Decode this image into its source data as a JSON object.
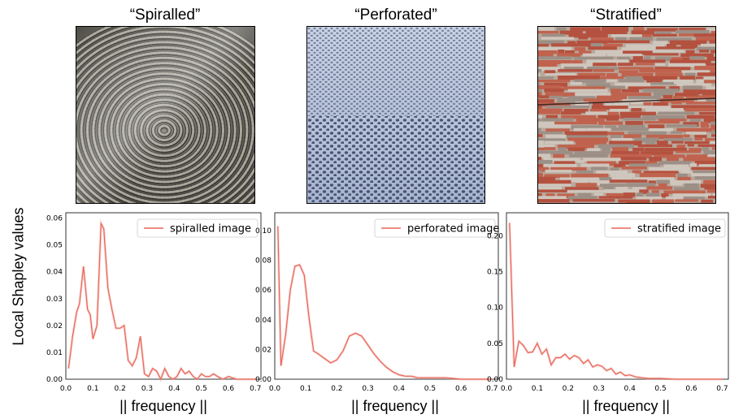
{
  "figure": {
    "ylabel": "Local Shapley values",
    "series_color": "#e8665a"
  },
  "panels": [
    {
      "title": "“Spiralled”",
      "texture": "rope-spiral",
      "xlabel": "|| frequency ||",
      "legend": "spiralled image"
    },
    {
      "title": "“Perforated”",
      "texture": "perforated-fabric",
      "xlabel": "|| frequency ||",
      "legend": "perforated image"
    },
    {
      "title": "“Stratified”",
      "texture": "stratified-wood",
      "xlabel": "|| frequency ||",
      "legend": "stratified image"
    }
  ],
  "chart_data": [
    {
      "type": "line",
      "legend_position": "top-right",
      "grid": false,
      "xlim": [
        0,
        0.72
      ],
      "ylim": [
        0,
        0.062
      ],
      "xticks": [
        "0.0",
        "0.1",
        "0.2",
        "0.3",
        "0.4",
        "0.5",
        "0.6",
        "0.7"
      ],
      "xtick_values": [
        0,
        0.1,
        0.2,
        0.3,
        0.4,
        0.5,
        0.6,
        0.7
      ],
      "yticks": [
        "0.00",
        "0.01",
        "0.02",
        "0.03",
        "0.04",
        "0.05",
        "0.06"
      ],
      "ytick_values": [
        0,
        0.01,
        0.02,
        0.03,
        0.04,
        0.05,
        0.06
      ],
      "series": [
        {
          "name": "spiralled image",
          "x": [
            0.01,
            0.025,
            0.04,
            0.05,
            0.065,
            0.08,
            0.09,
            0.1,
            0.115,
            0.13,
            0.14,
            0.155,
            0.17,
            0.185,
            0.2,
            0.215,
            0.23,
            0.245,
            0.26,
            0.275,
            0.29,
            0.305,
            0.32,
            0.335,
            0.35,
            0.365,
            0.38,
            0.395,
            0.41,
            0.425,
            0.44,
            0.455,
            0.47,
            0.485,
            0.5,
            0.515,
            0.53,
            0.545,
            0.56,
            0.58,
            0.6,
            0.63,
            0.66,
            0.7
          ],
          "y": [
            0.004,
            0.016,
            0.025,
            0.028,
            0.042,
            0.026,
            0.024,
            0.015,
            0.02,
            0.058,
            0.056,
            0.034,
            0.026,
            0.019,
            0.019,
            0.02,
            0.007,
            0.005,
            0.008,
            0.016,
            0.002,
            0.001,
            0.004,
            0.003,
            0.0,
            0.004,
            0.001,
            0.0,
            0.001,
            0.004,
            0.002,
            0.003,
            0.001,
            0.0,
            0.002,
            0.001,
            0.001,
            0.002,
            0.001,
            0.0,
            0.001,
            0.0,
            0.0,
            0.0
          ]
        }
      ]
    },
    {
      "type": "line",
      "legend_position": "top-right",
      "grid": false,
      "xlim": [
        0,
        0.72
      ],
      "ylim": [
        0,
        0.112
      ],
      "xticks": [
        "0.0",
        "0.1",
        "0.2",
        "0.3",
        "0.4",
        "0.5",
        "0.6",
        "0.7"
      ],
      "xtick_values": [
        0,
        0.1,
        0.2,
        0.3,
        0.4,
        0.5,
        0.6,
        0.7
      ],
      "yticks": [
        "0.00",
        "0.02",
        "0.04",
        "0.06",
        "0.08",
        "0.10"
      ],
      "ytick_values": [
        0,
        0.02,
        0.04,
        0.06,
        0.08,
        0.1
      ],
      "series": [
        {
          "name": "perforated image",
          "x": [
            0.01,
            0.02,
            0.035,
            0.05,
            0.065,
            0.08,
            0.095,
            0.11,
            0.125,
            0.14,
            0.16,
            0.18,
            0.2,
            0.22,
            0.24,
            0.26,
            0.28,
            0.3,
            0.32,
            0.34,
            0.36,
            0.38,
            0.4,
            0.42,
            0.44,
            0.46,
            0.48,
            0.5,
            0.55,
            0.6,
            0.65,
            0.7
          ],
          "y": [
            0.103,
            0.009,
            0.03,
            0.06,
            0.076,
            0.077,
            0.07,
            0.042,
            0.019,
            0.017,
            0.014,
            0.011,
            0.013,
            0.019,
            0.029,
            0.031,
            0.029,
            0.023,
            0.017,
            0.012,
            0.008,
            0.005,
            0.003,
            0.002,
            0.002,
            0.001,
            0.001,
            0.001,
            0.001,
            0.0,
            0.0,
            0.0
          ]
        }
      ]
    },
    {
      "type": "line",
      "legend_position": "top-right",
      "grid": false,
      "xlim": [
        0,
        0.72
      ],
      "ylim": [
        0,
        0.232
      ],
      "xticks": [
        "0.0",
        "0.1",
        "0.2",
        "0.3",
        "0.4",
        "0.5",
        "0.6",
        "0.7"
      ],
      "xtick_values": [
        0,
        0.1,
        0.2,
        0.3,
        0.4,
        0.5,
        0.6,
        0.7
      ],
      "yticks": [
        "0.00",
        "0.05",
        "0.10",
        "0.15",
        "0.20"
      ],
      "ytick_values": [
        0,
        0.05,
        0.1,
        0.15,
        0.2
      ],
      "series": [
        {
          "name": "stratified image",
          "x": [
            0.01,
            0.025,
            0.04,
            0.055,
            0.07,
            0.085,
            0.1,
            0.115,
            0.13,
            0.145,
            0.16,
            0.175,
            0.19,
            0.205,
            0.22,
            0.235,
            0.25,
            0.265,
            0.28,
            0.295,
            0.31,
            0.325,
            0.34,
            0.355,
            0.37,
            0.385,
            0.4,
            0.42,
            0.44,
            0.46,
            0.48,
            0.5,
            0.55,
            0.6,
            0.65,
            0.7
          ],
          "y": [
            0.218,
            0.017,
            0.053,
            0.047,
            0.037,
            0.038,
            0.05,
            0.035,
            0.042,
            0.02,
            0.03,
            0.03,
            0.035,
            0.028,
            0.033,
            0.03,
            0.022,
            0.027,
            0.017,
            0.02,
            0.018,
            0.012,
            0.015,
            0.007,
            0.01,
            0.005,
            0.006,
            0.003,
            0.002,
            0.001,
            0.001,
            0.001,
            0.0,
            0.0,
            0.0,
            0.0
          ]
        }
      ]
    }
  ]
}
